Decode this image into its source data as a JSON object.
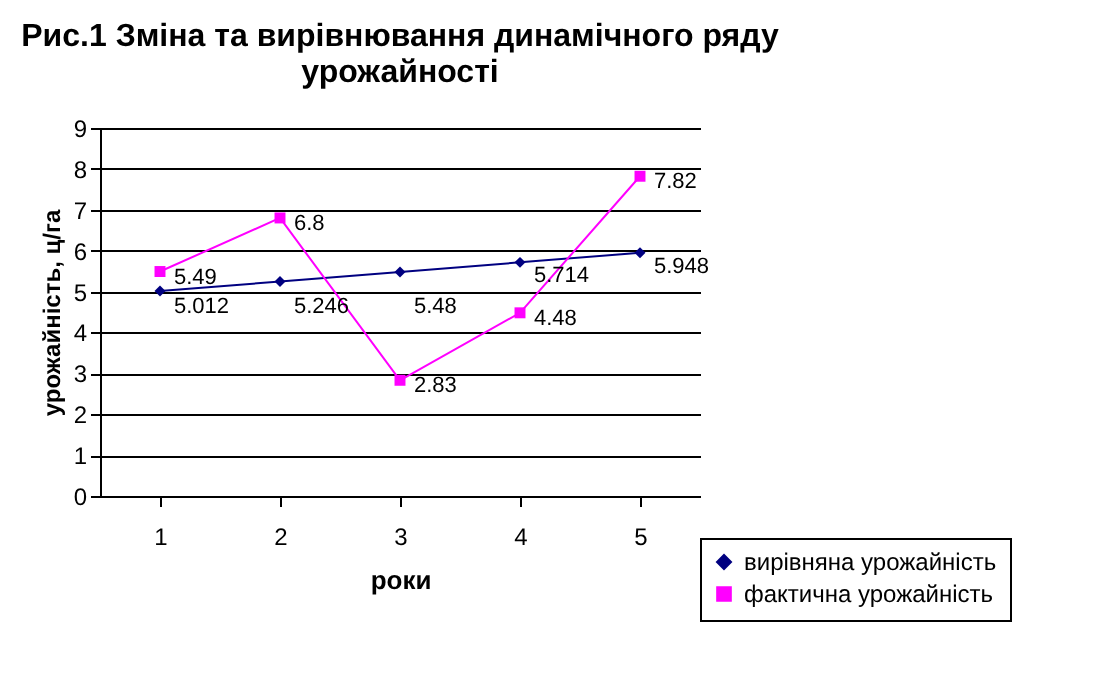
{
  "chart_data": {
    "type": "line",
    "title": [
      "Рис.1 Зміна та вирівнювання динамічного ряду",
      "урожайності"
    ],
    "xlabel": "роки",
    "ylabel": "урожайність, ц/га",
    "categories": [
      "1",
      "2",
      "3",
      "4",
      "5"
    ],
    "series": [
      {
        "name": "вирівняна урожайність",
        "color": "#000080",
        "marker": "diamond",
        "values": [
          5.012,
          5.246,
          5.48,
          5.714,
          5.948
        ]
      },
      {
        "name": "фактична урожайність",
        "color": "#ff00ff",
        "marker": "square",
        "values": [
          5.49,
          6.8,
          2.83,
          4.48,
          7.82
        ]
      }
    ],
    "ylim": [
      0,
      9
    ],
    "yticks": [
      0,
      1,
      2,
      3,
      4,
      5,
      6,
      7,
      8,
      9
    ],
    "grid": "y",
    "legend": "bottom right",
    "data_labels": true,
    "line_style": "solid"
  }
}
